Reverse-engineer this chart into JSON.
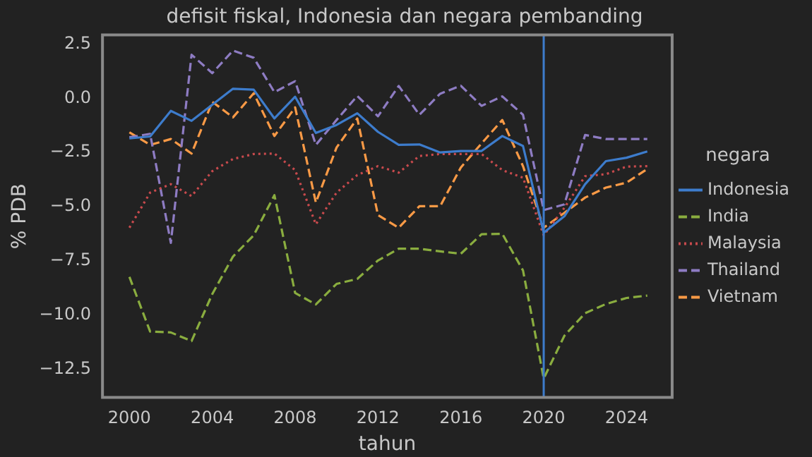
{
  "chart_data": {
    "type": "line",
    "title": "defisit fiskal, Indonesia dan negara pembanding",
    "xlabel": "tahun",
    "ylabel": "% PDB",
    "legend_title": "negara",
    "x": [
      2000,
      2001,
      2002,
      2003,
      2004,
      2005,
      2006,
      2007,
      2008,
      2009,
      2010,
      2011,
      2012,
      2013,
      2014,
      2015,
      2016,
      2017,
      2018,
      2019,
      2020,
      2021,
      2022,
      2023,
      2024,
      2025
    ],
    "series": [
      {
        "name": "Indonesia",
        "color": "#3d7ccc",
        "line_style": "solid",
        "values": [
          -1.85,
          -1.76,
          -0.58,
          -1.04,
          -0.3,
          0.44,
          0.4,
          -0.93,
          0.07,
          -1.6,
          -1.23,
          -0.69,
          -1.55,
          -2.15,
          -2.13,
          -2.5,
          -2.43,
          -2.43,
          -1.74,
          -2.2,
          -6.2,
          -5.44,
          -3.96,
          -2.9,
          -2.74,
          -2.45
        ]
      },
      {
        "name": "India",
        "color": "#8aad3f",
        "line_style": "dashed",
        "values": [
          -8.24,
          -10.76,
          -10.8,
          -11.2,
          -9.03,
          -7.3,
          -6.32,
          -4.47,
          -8.98,
          -9.51,
          -8.56,
          -8.33,
          -7.48,
          -6.94,
          -6.94,
          -7.06,
          -7.17,
          -6.27,
          -6.25,
          -7.94,
          -12.92,
          -10.95,
          -9.91,
          -9.49,
          -9.21,
          -9.1
        ]
      },
      {
        "name": "Malaysia",
        "color": "#c84a4d",
        "line_style": "dotted",
        "values": [
          -5.97,
          -4.35,
          -3.96,
          -4.51,
          -3.36,
          -2.8,
          -2.57,
          -2.55,
          -3.31,
          -5.81,
          -4.35,
          -3.54,
          -3.13,
          -3.43,
          -2.66,
          -2.57,
          -2.57,
          -2.57,
          -3.31,
          -3.66,
          -6.32,
          -5.05,
          -3.59,
          -3.5,
          -3.15,
          -3.13
        ]
      },
      {
        "name": "Thailand",
        "color": "#8e7cc3",
        "line_style": "dashed",
        "values": [
          -1.8,
          -1.64,
          -6.67,
          2.01,
          1.16,
          2.2,
          1.87,
          0.28,
          0.79,
          -2.15,
          -1.0,
          0.11,
          -0.83,
          0.57,
          -0.76,
          0.21,
          0.58,
          -0.35,
          0.09,
          -0.76,
          -5.16,
          -4.89,
          -1.69,
          -1.88,
          -1.88,
          -1.88
        ]
      },
      {
        "name": "Vietnam",
        "color": "#fa9a46",
        "line_style": "dashed",
        "values": [
          -1.57,
          -2.15,
          -1.88,
          -2.55,
          -0.16,
          -0.88,
          0.23,
          -1.74,
          -0.42,
          -4.81,
          -2.27,
          -0.93,
          -5.39,
          -5.97,
          -4.98,
          -4.98,
          -3.19,
          -2.08,
          -1.0,
          -3.13,
          -5.97,
          -5.28,
          -4.58,
          -4.12,
          -3.89,
          -3.26
        ]
      }
    ],
    "xlim": [
      1998.7,
      2026.2
    ],
    "ylim": [
      -13.8,
      2.92
    ],
    "xticks": [
      2000,
      2004,
      2008,
      2012,
      2016,
      2020,
      2024
    ],
    "yticks": [
      {
        "value": 2.5,
        "label": "2.5"
      },
      {
        "value": 0,
        "label": "0.0"
      },
      {
        "value": -2.5,
        "label": "−2.5"
      },
      {
        "value": -5,
        "label": "−5.0"
      },
      {
        "value": -7.5,
        "label": "−7.5"
      },
      {
        "value": -10,
        "label": "−10.0"
      },
      {
        "value": -12.5,
        "label": "−12.5"
      }
    ],
    "ref_lines": [
      {
        "axis": "x",
        "value": 2020,
        "color": "#3d7ccc"
      }
    ],
    "grid": false,
    "legend": "right",
    "marker": "none"
  }
}
